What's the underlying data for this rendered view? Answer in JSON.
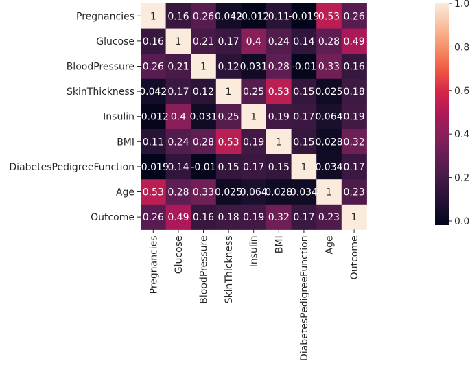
{
  "chart_data": {
    "type": "heatmap",
    "title": "",
    "xlabel": "",
    "ylabel": "",
    "labels": [
      "Pregnancies",
      "Glucose",
      "BloodPressure",
      "SkinThickness",
      "Insulin",
      "BMI",
      "DiabetesPedigreeFunction",
      "Age",
      "Outcome"
    ],
    "matrix": [
      [
        1,
        0.16,
        0.26,
        0.042,
        -0.012,
        0.11,
        -0.019,
        0.53,
        0.26
      ],
      [
        0.16,
        1,
        0.21,
        0.17,
        0.4,
        0.24,
        0.14,
        0.28,
        0.49
      ],
      [
        0.26,
        0.21,
        1,
        0.12,
        0.031,
        0.28,
        -0.01,
        0.33,
        0.16
      ],
      [
        0.042,
        0.17,
        0.12,
        1,
        0.25,
        0.53,
        0.15,
        0.025,
        0.18
      ],
      [
        -0.012,
        0.4,
        0.031,
        0.25,
        1,
        0.19,
        0.17,
        0.064,
        0.19
      ],
      [
        0.11,
        0.24,
        0.28,
        0.53,
        0.19,
        1,
        0.15,
        0.028,
        0.32
      ],
      [
        -0.019,
        0.14,
        -0.01,
        0.15,
        0.17,
        0.15,
        1,
        0.034,
        0.17
      ],
      [
        0.53,
        0.28,
        0.33,
        0.025,
        0.064,
        0.028,
        0.034,
        1,
        0.23
      ],
      [
        0.26,
        0.49,
        0.16,
        0.18,
        0.19,
        0.32,
        0.17,
        0.23,
        1
      ]
    ],
    "annotations": true,
    "colormap": "rocket",
    "vmin": -0.019,
    "vmax": 1,
    "colorbar": {
      "position": "right",
      "ticks": [
        0.0,
        0.2,
        0.4,
        0.6,
        0.8,
        1.0
      ],
      "tick_labels": [
        "0.0",
        "0.2",
        "0.4",
        "0.6",
        "0.8",
        "1.0"
      ]
    },
    "grid": false,
    "legend": "none"
  }
}
